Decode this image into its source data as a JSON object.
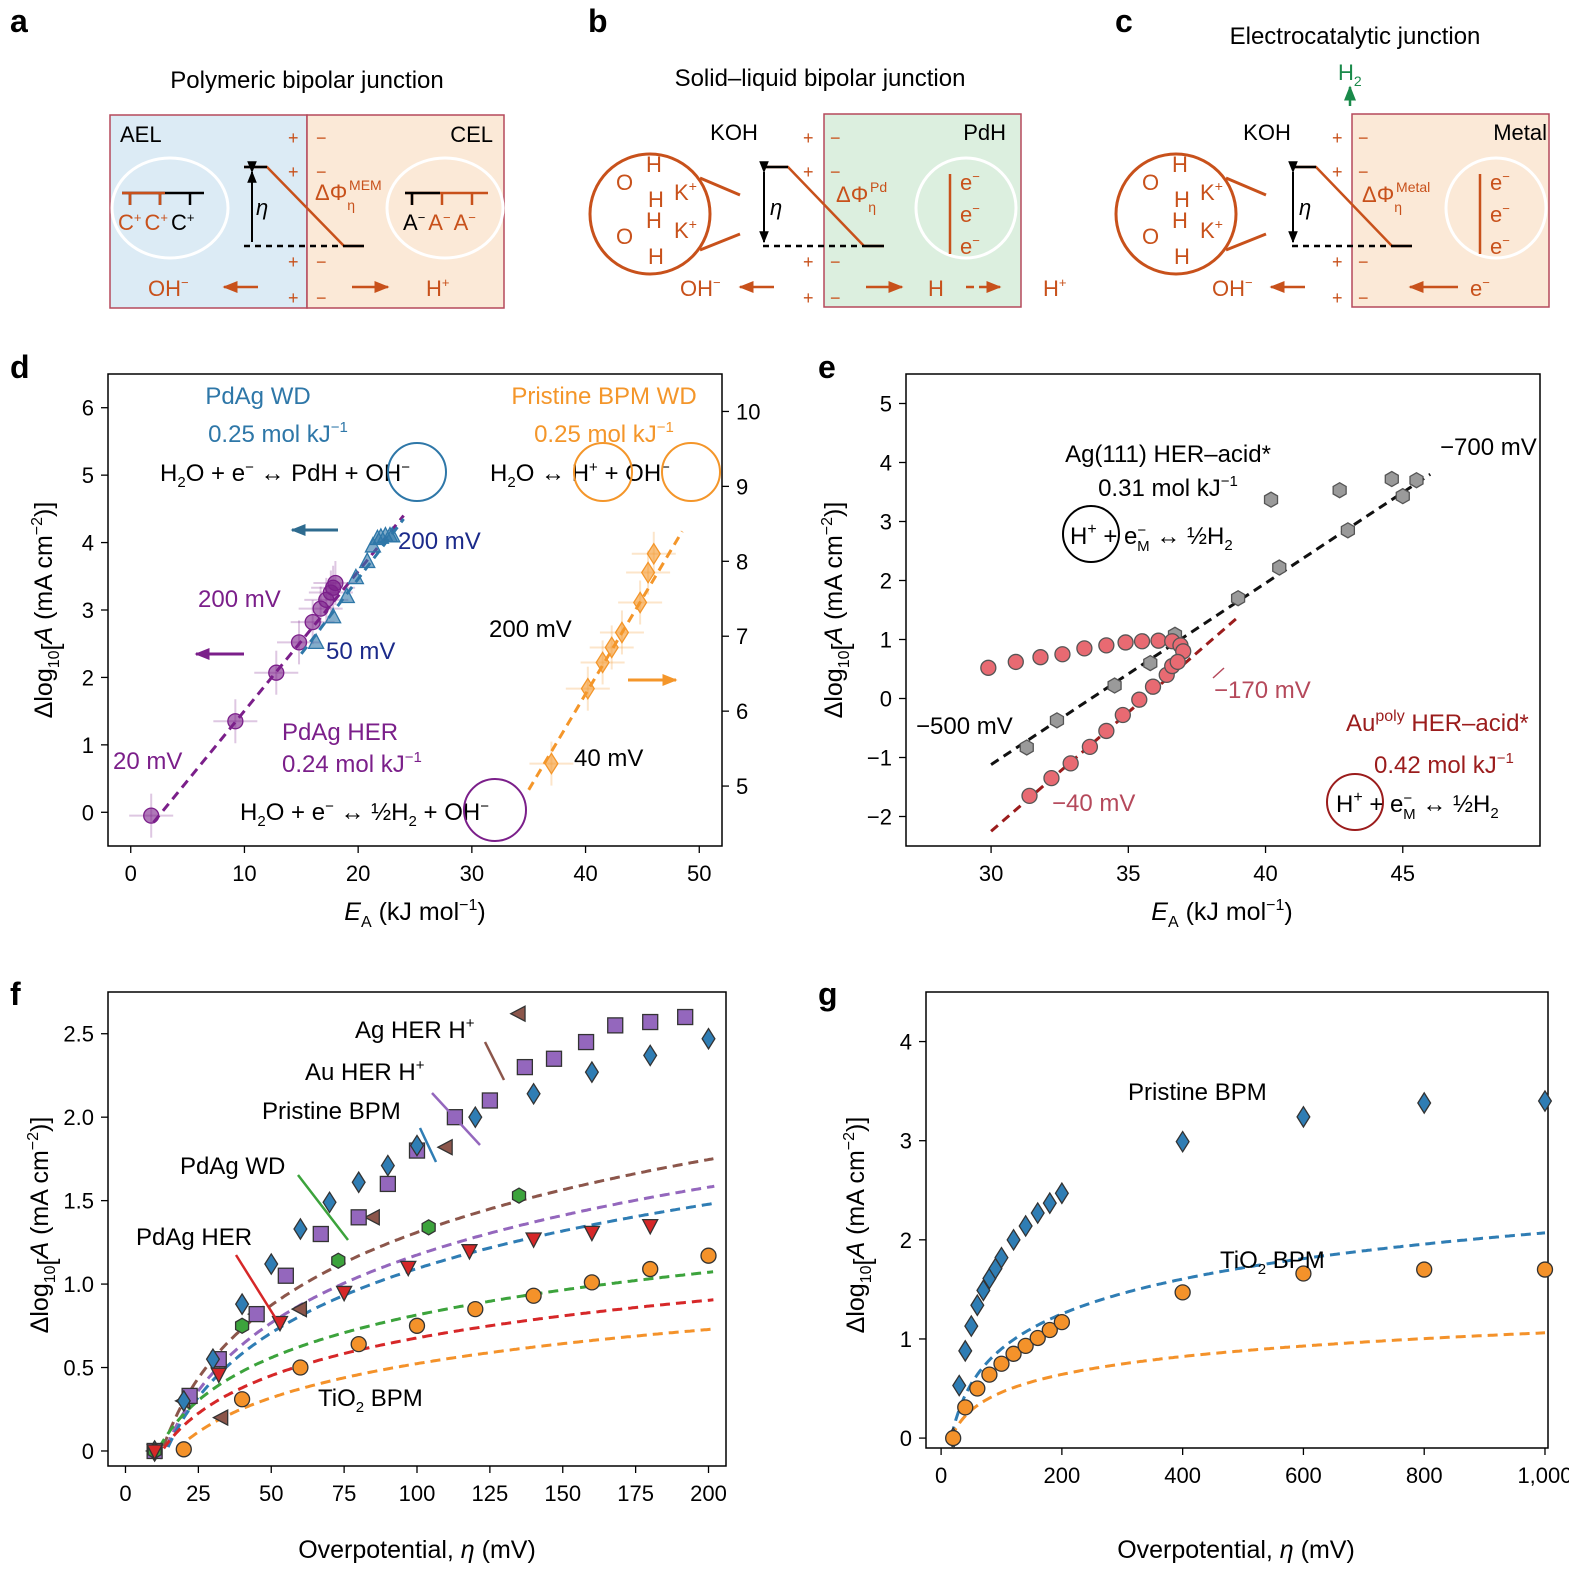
{
  "panels": {
    "a": "a",
    "b": "b",
    "c": "c",
    "d": "d",
    "e": "e",
    "f": "f",
    "g": "g"
  },
  "schematic_a": {
    "title": "Polymeric bipolar junction",
    "left": "AEL",
    "right": "CEL",
    "cation": "C",
    "anion": "A",
    "eta": "η",
    "phi_label": "ΔΦ",
    "phi_sub": "η",
    "phi_sup": "MEM",
    "oh": "OH",
    "h": "H",
    "plus": "+",
    "minus": "−"
  },
  "schematic_b": {
    "title": "Solid–liquid bipolar junction",
    "left": "KOH",
    "right": "PdH",
    "eta": "η",
    "phi_label": "ΔΦ",
    "phi_sub": "η",
    "phi_sup": "Pd",
    "oh": "OH",
    "h_atom": "H",
    "h_plus": "H",
    "electron": "e",
    "o": "O",
    "k": "K"
  },
  "schematic_c": {
    "title": "Electrocatalytic junction",
    "gas": "H",
    "gas_sub": "2",
    "left": "KOH",
    "right": "Metal",
    "eta": "η",
    "phi_label": "ΔΦ",
    "phi_sub": "η",
    "phi_sup": "Metal",
    "oh": "OH",
    "electron": "e"
  },
  "chart_data": [
    {
      "panel": "d",
      "type": "scatter",
      "xlabel": "E_A (kJ mol⁻¹)",
      "ylabel": "Δlog10[A (mA cm⁻²)]",
      "xlim": [
        -2,
        52
      ],
      "ylim": [
        -0.5,
        6.5
      ],
      "y2lim": [
        4.2,
        10.5
      ],
      "xticks": [
        0,
        10,
        20,
        30,
        40,
        50
      ],
      "yticks": [
        0,
        1,
        2,
        3,
        4,
        5,
        6
      ],
      "y2ticks": [
        5,
        6,
        7,
        8,
        9,
        10
      ],
      "series": [
        {
          "name": "PdAg HER",
          "color": "#7b1f8a",
          "marker": "circle",
          "axis": "left",
          "x": [
            1.8,
            9.2,
            12.8,
            14.8,
            16.0,
            16.7,
            17.2,
            17.6,
            17.8,
            18.0
          ],
          "y": [
            -0.05,
            1.35,
            2.07,
            2.52,
            2.82,
            3.02,
            3.15,
            3.26,
            3.33,
            3.4
          ],
          "fit": {
            "x": [
              2,
              24
            ],
            "y": [
              -0.15,
              4.4
            ]
          },
          "rate": "0.24 mol kJ⁻¹",
          "reaction": "H₂O + e⁻ ↔ ½H₂ + OH⁻",
          "label_low": "20 mV",
          "label_high": "200 mV"
        },
        {
          "name": "PdAg WD",
          "color": "#2e77a8",
          "marker": "triangle",
          "axis": "left",
          "x": [
            16.3,
            17.8,
            19.0,
            19.8,
            20.8,
            21.3,
            21.7,
            22.0,
            22.4,
            22.8,
            23.0
          ],
          "y": [
            2.52,
            2.9,
            3.2,
            3.48,
            3.72,
            3.95,
            4.06,
            4.08,
            4.1,
            4.1,
            4.1
          ],
          "fit": {
            "x": [
              15,
              24
            ],
            "y": [
              2.35,
              4.35
            ]
          },
          "rate": "0.25 mol kJ⁻¹",
          "reaction": "H₂O + e⁻ ↔ PdH + OH⁻",
          "label_low": "50 mV",
          "label_high": "200 mV"
        },
        {
          "name": "Pristine BPM WD",
          "color": "#f4962a",
          "marker": "diamond",
          "axis": "right",
          "x": [
            37.0,
            40.2,
            41.5,
            42.3,
            43.2,
            44.8,
            45.5,
            46.0
          ],
          "y": [
            5.3,
            6.3,
            6.65,
            6.85,
            7.05,
            7.45,
            7.85,
            8.1
          ],
          "fit": {
            "x": [
              35,
              48.5
            ],
            "y": [
              4.95,
              8.4
            ]
          },
          "rate": "0.25 mol kJ⁻¹",
          "reaction": "H₂O ↔ H⁺ + OH⁻",
          "label_low": "40 mV",
          "label_high": "200 mV"
        }
      ]
    },
    {
      "panel": "e",
      "type": "scatter",
      "xlabel": "E_A (kJ mol⁻¹)",
      "ylabel": "Δlog10[A (mA cm⁻²)]",
      "xlim": [
        26.9,
        50
      ],
      "ylim": [
        -2.5,
        5.5
      ],
      "xticks": [
        30,
        35,
        40,
        45
      ],
      "yticks": [
        -2,
        -1,
        0,
        1,
        2,
        3,
        4,
        5
      ],
      "series": [
        {
          "name": "Ag(111) HER-acid*",
          "color": "#9a9a9a",
          "marker": "hexagon",
          "x": [
            31.3,
            32.4,
            34.5,
            35.8,
            36.7,
            39.0,
            40.2,
            40.5,
            42.7,
            43.0,
            44.6,
            45.0,
            45.5
          ],
          "y": [
            -0.83,
            -0.37,
            0.22,
            0.6,
            1.08,
            1.7,
            3.37,
            2.22,
            3.53,
            2.85,
            3.72,
            3.43,
            3.7
          ],
          "fit": {
            "x": [
              30,
              46
            ],
            "y": [
              -1.12,
              3.8
            ]
          },
          "rate": "0.31 mol kJ⁻¹",
          "reaction": "H⁺ + e⁻M ↔ ½H₂",
          "label_low": "−500 mV",
          "label_high": "−700 mV"
        },
        {
          "name": "Au poly HER-acid*",
          "color": "#e86a72",
          "marker": "circle",
          "x": [
            29.9,
            30.9,
            31.8,
            32.6,
            33.4,
            34.2,
            34.9,
            35.5,
            36.1,
            36.6,
            36.9,
            37.0,
            31.4,
            32.2,
            32.9,
            33.6,
            34.2,
            34.8,
            35.4,
            35.9,
            36.4,
            36.6,
            36.8
          ],
          "y": [
            0.52,
            0.62,
            0.7,
            0.75,
            0.85,
            0.9,
            0.95,
            0.97,
            0.98,
            0.97,
            0.9,
            0.8,
            -1.65,
            -1.35,
            -1.1,
            -0.82,
            -0.55,
            -0.28,
            -0.02,
            0.2,
            0.4,
            0.55,
            0.62
          ],
          "fit": {
            "x": [
              30,
              39
            ],
            "y": [
              -2.25,
              1.38
            ]
          },
          "rate": "0.42 mol kJ⁻¹",
          "reaction": "H⁺ + e⁻M ↔ ½H₂",
          "label_low": "−40 mV",
          "label_high": "−170 mV"
        }
      ]
    },
    {
      "panel": "f",
      "type": "scatter",
      "xlabel": "Overpotential, η (mV)",
      "ylabel": "Δlog10[A (mA cm⁻²)]",
      "xlim": [
        -6,
        206
      ],
      "ylim": [
        -0.09,
        2.75
      ],
      "xticks": [
        0,
        25,
        50,
        75,
        100,
        125,
        150,
        175,
        200
      ],
      "yticks": [
        0,
        0.5,
        1.0,
        1.5,
        2.0,
        2.5
      ],
      "series": [
        {
          "name": "Ag HER H⁺",
          "color": "#8c564b",
          "marker": "triangle-left",
          "x": [
            10,
            20,
            33,
            45,
            60,
            85,
            110,
            135
          ],
          "y": [
            0.0,
            0.3,
            0.2,
            0.82,
            0.85,
            1.4,
            1.82,
            2.62
          ],
          "fit": {
            "a": 1.45,
            "x0": 12.5
          }
        },
        {
          "name": "Au HER H⁺",
          "color": "#9467bd",
          "marker": "square",
          "x": [
            10,
            22,
            32,
            45,
            55,
            67,
            80,
            90,
            100,
            113,
            125,
            137,
            147,
            158,
            168,
            180,
            192
          ],
          "y": [
            0.0,
            0.33,
            0.55,
            0.82,
            1.05,
            1.3,
            1.4,
            1.6,
            1.8,
            2.0,
            2.1,
            2.3,
            2.35,
            2.45,
            2.55,
            2.57,
            2.6
          ],
          "fit": {
            "a": 1.35,
            "x0": 13.5
          }
        },
        {
          "name": "Pristine BPM",
          "color": "#2f7db4",
          "marker": "diamond",
          "x": [
            10,
            20,
            30,
            40,
            50,
            60,
            70,
            80,
            90,
            100,
            120,
            140,
            160,
            180,
            200
          ],
          "y": [
            0.0,
            0.3,
            0.55,
            0.88,
            1.12,
            1.33,
            1.49,
            1.61,
            1.71,
            1.83,
            2.0,
            2.14,
            2.27,
            2.37,
            2.47
          ],
          "fit": {
            "a": 1.28,
            "x0": 14
          }
        },
        {
          "name": "PdAg WD",
          "color": "#3ca33c",
          "marker": "hexagon",
          "x": [
            10,
            40,
            73,
            104,
            135
          ],
          "y": [
            0.0,
            0.75,
            1.14,
            1.34,
            1.53
          ],
          "fit": {
            "a": 0.85,
            "x0": 11
          }
        },
        {
          "name": "PdAg HER",
          "color": "#d62728",
          "marker": "triangle-down",
          "x": [
            10,
            32,
            53,
            75,
            97,
            118,
            140,
            160,
            180
          ],
          "y": [
            0.0,
            0.46,
            0.77,
            0.95,
            1.1,
            1.2,
            1.27,
            1.31,
            1.35
          ],
          "fit": {
            "a": 0.75,
            "x0": 12.5
          }
        },
        {
          "name": "TiO₂ BPM",
          "color": "#f4922a",
          "marker": "circle",
          "x": [
            20,
            40,
            60,
            80,
            100,
            120,
            140,
            160,
            180,
            200
          ],
          "y": [
            0.01,
            0.31,
            0.5,
            0.64,
            0.75,
            0.85,
            0.93,
            1.01,
            1.09,
            1.17
          ],
          "fit": {
            "a": 0.68,
            "x0": 17
          }
        }
      ]
    },
    {
      "panel": "g",
      "type": "scatter",
      "xlabel": "Overpotential, η (mV)",
      "ylabel": "Δlog10[A (mA cm⁻²)]",
      "xlim": [
        -25,
        1005
      ],
      "ylim": [
        -0.1,
        4.5
      ],
      "xticks": [
        0,
        200,
        400,
        600,
        800,
        1000
      ],
      "xticklabels": [
        "0",
        "200",
        "400",
        "600",
        "800",
        "1,000"
      ],
      "yticks": [
        0,
        1,
        2,
        3,
        4
      ],
      "series": [
        {
          "name": "Pristine BPM",
          "color": "#2f7db4",
          "marker": "diamond",
          "x": [
            20,
            30,
            40,
            50,
            60,
            70,
            80,
            90,
            100,
            120,
            140,
            160,
            180,
            200,
            400,
            600,
            800,
            1000
          ],
          "y": [
            0.0,
            0.53,
            0.88,
            1.13,
            1.34,
            1.49,
            1.61,
            1.71,
            1.82,
            2.0,
            2.14,
            2.27,
            2.37,
            2.47,
            2.99,
            3.24,
            3.38,
            3.4
          ],
          "fit": {
            "a": 1.17,
            "x0": 17
          }
        },
        {
          "name": "TiO₂ BPM",
          "color": "#f4922a",
          "marker": "circle",
          "x": [
            20,
            40,
            60,
            80,
            100,
            120,
            140,
            160,
            180,
            200,
            400,
            600,
            800,
            1000
          ],
          "y": [
            0.0,
            0.31,
            0.5,
            0.64,
            0.75,
            0.85,
            0.93,
            1.01,
            1.09,
            1.17,
            1.47,
            1.66,
            1.7,
            1.7
          ],
          "fit": {
            "a": 0.6,
            "x0": 17
          }
        }
      ]
    }
  ]
}
